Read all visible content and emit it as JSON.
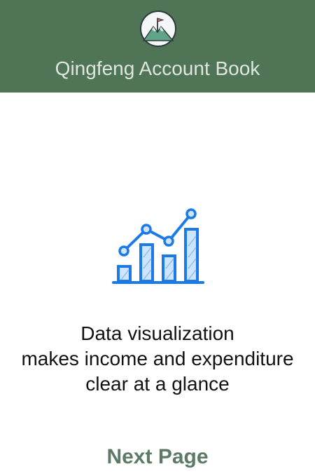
{
  "header": {
    "title": "Qingfeng Account Book",
    "logo_icon": "mountain-flag-icon",
    "background_color": "#4f7556"
  },
  "onboarding": {
    "illustration_icon": "bar-line-chart-icon",
    "accent_color": "#1a7ae8",
    "message_lines": [
      "Data visualization",
      "makes income and expenditure",
      "clear at a glance"
    ]
  },
  "footer": {
    "next_label": "Next Page",
    "next_color": "#5c7a66"
  }
}
